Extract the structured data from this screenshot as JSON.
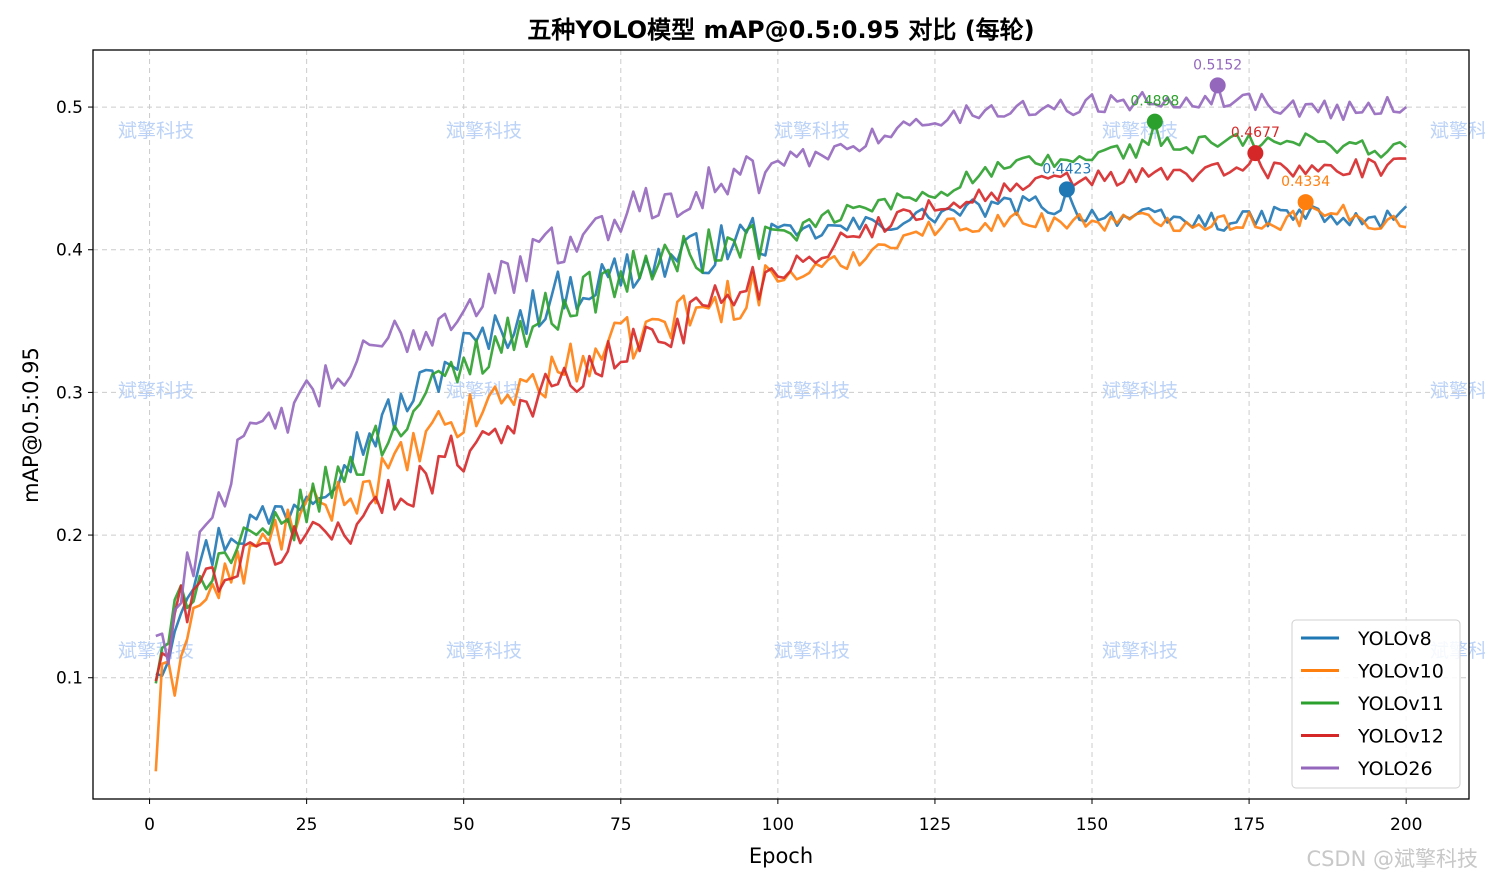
{
  "chart_data": {
    "type": "line",
    "title": "五种YOLO模型 mAP@0.5:0.95 对比 (每轮)",
    "xlabel": "Epoch",
    "ylabel": "mAP@0.5:0.95",
    "xlim": [
      -9,
      210
    ],
    "ylim": [
      0.015,
      0.54
    ],
    "xticks": [
      0,
      25,
      50,
      75,
      100,
      125,
      150,
      175,
      200
    ],
    "yticks": [
      0.1,
      0.2,
      0.3,
      0.4,
      0.5
    ],
    "grid": true,
    "legend_position": "lower-right",
    "x": {
      "start": 1,
      "end": 200,
      "step": 1
    },
    "series": [
      {
        "name": "YOLOv8",
        "color": "#1f77b4",
        "keypoints": [
          [
            1,
            0.11
          ],
          [
            3,
            0.12
          ],
          [
            5,
            0.16
          ],
          [
            8,
            0.18
          ],
          [
            12,
            0.2
          ],
          [
            15,
            0.205
          ],
          [
            20,
            0.215
          ],
          [
            25,
            0.23
          ],
          [
            30,
            0.25
          ],
          [
            35,
            0.27
          ],
          [
            40,
            0.29
          ],
          [
            45,
            0.31
          ],
          [
            50,
            0.33
          ],
          [
            55,
            0.34
          ],
          [
            60,
            0.355
          ],
          [
            65,
            0.37
          ],
          [
            70,
            0.375
          ],
          [
            75,
            0.385
          ],
          [
            80,
            0.39
          ],
          [
            85,
            0.395
          ],
          [
            90,
            0.4
          ],
          [
            95,
            0.41
          ],
          [
            100,
            0.41
          ],
          [
            105,
            0.412
          ],
          [
            110,
            0.415
          ],
          [
            115,
            0.418
          ],
          [
            120,
            0.42
          ],
          [
            125,
            0.425
          ],
          [
            130,
            0.428
          ],
          [
            135,
            0.43
          ],
          [
            140,
            0.432
          ],
          [
            145,
            0.43
          ],
          [
            150,
            0.425
          ],
          [
            155,
            0.423
          ],
          [
            160,
            0.422
          ],
          [
            165,
            0.42
          ],
          [
            170,
            0.42
          ],
          [
            175,
            0.42
          ],
          [
            180,
            0.425
          ],
          [
            185,
            0.425
          ],
          [
            190,
            0.42
          ],
          [
            195,
            0.42
          ],
          [
            200,
            0.425
          ]
        ],
        "best": {
          "epoch": 146,
          "value": 0.4423,
          "label": "0.4423"
        }
      },
      {
        "name": "YOLOv10",
        "color": "#ff7f0e",
        "keypoints": [
          [
            1,
            0.04
          ],
          [
            2,
            0.095
          ],
          [
            4,
            0.1
          ],
          [
            6,
            0.14
          ],
          [
            10,
            0.16
          ],
          [
            15,
            0.18
          ],
          [
            20,
            0.2
          ],
          [
            25,
            0.215
          ],
          [
            30,
            0.225
          ],
          [
            35,
            0.235
          ],
          [
            40,
            0.25
          ],
          [
            45,
            0.27
          ],
          [
            50,
            0.28
          ],
          [
            55,
            0.295
          ],
          [
            60,
            0.305
          ],
          [
            65,
            0.315
          ],
          [
            70,
            0.325
          ],
          [
            75,
            0.335
          ],
          [
            80,
            0.345
          ],
          [
            85,
            0.355
          ],
          [
            90,
            0.36
          ],
          [
            95,
            0.37
          ],
          [
            100,
            0.38
          ],
          [
            105,
            0.385
          ],
          [
            110,
            0.39
          ],
          [
            115,
            0.4
          ],
          [
            120,
            0.41
          ],
          [
            125,
            0.415
          ],
          [
            130,
            0.418
          ],
          [
            135,
            0.42
          ],
          [
            140,
            0.42
          ],
          [
            145,
            0.42
          ],
          [
            150,
            0.42
          ],
          [
            155,
            0.42
          ],
          [
            160,
            0.42
          ],
          [
            165,
            0.42
          ],
          [
            170,
            0.42
          ],
          [
            175,
            0.42
          ],
          [
            180,
            0.42
          ],
          [
            185,
            0.425
          ],
          [
            190,
            0.425
          ],
          [
            195,
            0.42
          ],
          [
            200,
            0.42
          ]
        ],
        "best": {
          "epoch": 184,
          "value": 0.4334,
          "label": "0.4334"
        }
      },
      {
        "name": "YOLOv11",
        "color": "#2ca02c",
        "keypoints": [
          [
            1,
            0.1
          ],
          [
            3,
            0.12
          ],
          [
            5,
            0.16
          ],
          [
            8,
            0.17
          ],
          [
            12,
            0.185
          ],
          [
            15,
            0.19
          ],
          [
            20,
            0.2
          ],
          [
            25,
            0.22
          ],
          [
            30,
            0.24
          ],
          [
            35,
            0.26
          ],
          [
            40,
            0.28
          ],
          [
            45,
            0.3
          ],
          [
            50,
            0.32
          ],
          [
            55,
            0.335
          ],
          [
            60,
            0.345
          ],
          [
            65,
            0.36
          ],
          [
            70,
            0.37
          ],
          [
            75,
            0.38
          ],
          [
            80,
            0.39
          ],
          [
            85,
            0.395
          ],
          [
            90,
            0.4
          ],
          [
            95,
            0.405
          ],
          [
            100,
            0.41
          ],
          [
            105,
            0.415
          ],
          [
            110,
            0.425
          ],
          [
            115,
            0.43
          ],
          [
            120,
            0.435
          ],
          [
            125,
            0.44
          ],
          [
            130,
            0.45
          ],
          [
            135,
            0.455
          ],
          [
            140,
            0.46
          ],
          [
            145,
            0.462
          ],
          [
            150,
            0.465
          ],
          [
            155,
            0.47
          ],
          [
            160,
            0.472
          ],
          [
            165,
            0.472
          ],
          [
            170,
            0.475
          ],
          [
            175,
            0.475
          ],
          [
            180,
            0.475
          ],
          [
            185,
            0.475
          ],
          [
            190,
            0.475
          ],
          [
            195,
            0.47
          ],
          [
            200,
            0.47
          ]
        ],
        "best": {
          "epoch": 160,
          "value": 0.4898,
          "label": "0.4898"
        }
      },
      {
        "name": "YOLOv12",
        "color": "#d62728",
        "keypoints": [
          [
            1,
            0.1
          ],
          [
            3,
            0.12
          ],
          [
            5,
            0.15
          ],
          [
            8,
            0.165
          ],
          [
            12,
            0.175
          ],
          [
            15,
            0.18
          ],
          [
            20,
            0.19
          ],
          [
            25,
            0.2
          ],
          [
            30,
            0.205
          ],
          [
            35,
            0.215
          ],
          [
            40,
            0.23
          ],
          [
            45,
            0.245
          ],
          [
            50,
            0.26
          ],
          [
            55,
            0.275
          ],
          [
            60,
            0.29
          ],
          [
            65,
            0.305
          ],
          [
            70,
            0.315
          ],
          [
            75,
            0.325
          ],
          [
            80,
            0.34
          ],
          [
            85,
            0.35
          ],
          [
            90,
            0.365
          ],
          [
            95,
            0.375
          ],
          [
            100,
            0.385
          ],
          [
            105,
            0.395
          ],
          [
            110,
            0.405
          ],
          [
            115,
            0.415
          ],
          [
            120,
            0.425
          ],
          [
            125,
            0.43
          ],
          [
            130,
            0.435
          ],
          [
            135,
            0.44
          ],
          [
            140,
            0.445
          ],
          [
            145,
            0.448
          ],
          [
            150,
            0.45
          ],
          [
            155,
            0.45
          ],
          [
            160,
            0.452
          ],
          [
            165,
            0.453
          ],
          [
            170,
            0.455
          ],
          [
            175,
            0.455
          ],
          [
            180,
            0.456
          ],
          [
            185,
            0.456
          ],
          [
            190,
            0.457
          ],
          [
            195,
            0.457
          ],
          [
            200,
            0.457
          ]
        ],
        "best": {
          "epoch": 176,
          "value": 0.4677,
          "label": "0.4677"
        }
      },
      {
        "name": "YOLO26",
        "color": "#9467bd",
        "keypoints": [
          [
            1,
            0.13
          ],
          [
            3,
            0.125
          ],
          [
            5,
            0.16
          ],
          [
            8,
            0.2
          ],
          [
            10,
            0.22
          ],
          [
            15,
            0.26
          ],
          [
            20,
            0.28
          ],
          [
            25,
            0.295
          ],
          [
            30,
            0.31
          ],
          [
            35,
            0.325
          ],
          [
            40,
            0.34
          ],
          [
            45,
            0.345
          ],
          [
            50,
            0.36
          ],
          [
            55,
            0.375
          ],
          [
            60,
            0.39
          ],
          [
            65,
            0.405
          ],
          [
            70,
            0.41
          ],
          [
            75,
            0.425
          ],
          [
            80,
            0.435
          ],
          [
            85,
            0.44
          ],
          [
            90,
            0.445
          ],
          [
            95,
            0.45
          ],
          [
            100,
            0.46
          ],
          [
            105,
            0.465
          ],
          [
            110,
            0.47
          ],
          [
            115,
            0.48
          ],
          [
            120,
            0.485
          ],
          [
            125,
            0.49
          ],
          [
            130,
            0.495
          ],
          [
            135,
            0.497
          ],
          [
            140,
            0.5
          ],
          [
            145,
            0.5
          ],
          [
            150,
            0.502
          ],
          [
            155,
            0.504
          ],
          [
            160,
            0.505
          ],
          [
            165,
            0.506
          ],
          [
            170,
            0.507
          ],
          [
            175,
            0.505
          ],
          [
            180,
            0.5
          ],
          [
            185,
            0.5
          ],
          [
            190,
            0.498
          ],
          [
            195,
            0.5
          ],
          [
            200,
            0.502
          ]
        ],
        "best": {
          "epoch": 170,
          "value": 0.5152,
          "label": "0.5152"
        }
      }
    ]
  },
  "watermark": "斌擎科技",
  "credit": "CSDN @斌擎科技"
}
